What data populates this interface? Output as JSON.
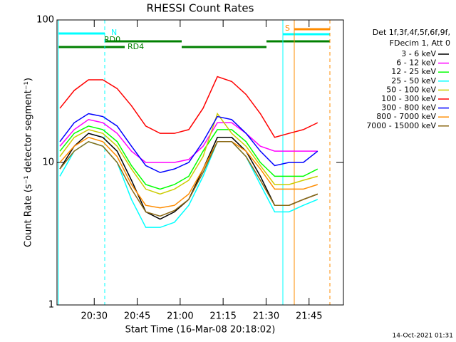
{
  "chart_data": {
    "type": "line",
    "title": "RHESSI Count Rates",
    "x_label": "Start Time (16-Mar-08 20:18:02)",
    "y_label": "Count Rate (s⁻¹ detector segment⁻¹)",
    "footer": "14-Oct-2021 01:31",
    "legend_header": [
      "Det 1f,3f,4f,5f,6f,9f,",
      "FDecim 1, Att 0"
    ],
    "legend": "right",
    "log_y": true,
    "annotations": [
      "N",
      "RD0",
      "RD4",
      "S"
    ],
    "x": [
      "20:18",
      "20:23",
      "20:28",
      "20:33",
      "20:38",
      "20:43",
      "20:48",
      "20:53",
      "20:58",
      "21:03",
      "21:08",
      "21:13",
      "21:18",
      "21:23",
      "21:28",
      "21:33",
      "21:38",
      "21:43",
      "21:48"
    ],
    "xlim": [
      "20:17",
      "21:57"
    ],
    "xticks": [
      "20:30",
      "20:45",
      "21:00",
      "21:15",
      "21:30",
      "21:45"
    ],
    "ylim": [
      1,
      100
    ],
    "yticks": [
      1,
      10,
      100
    ],
    "series": [
      {
        "name": "3 - 6 keV",
        "color": "#000000",
        "values": [
          9,
          13,
          16,
          15,
          12,
          7.5,
          4.5,
          4,
          4.5,
          5.5,
          9,
          15,
          15,
          12,
          8,
          5,
          5,
          5.5,
          6
        ]
      },
      {
        "name": "6 - 12 keV",
        "color": "#ff00ff",
        "values": [
          13,
          17,
          20,
          19,
          16,
          12,
          10,
          10,
          10,
          10.5,
          13,
          19,
          19,
          16,
          13,
          12,
          12,
          12,
          12
        ]
      },
      {
        "name": "12 - 25 keV",
        "color": "#00ff00",
        "values": [
          12,
          16,
          18,
          17,
          14,
          9.5,
          7,
          6.5,
          7,
          8,
          12,
          17,
          17,
          14,
          10,
          8,
          8,
          8,
          9
        ]
      },
      {
        "name": "25 - 50 keV",
        "color": "#00ffff",
        "values": [
          8,
          12,
          14,
          13,
          10,
          5.5,
          3.5,
          3.5,
          3.8,
          5,
          8,
          14,
          14,
          11,
          7,
          4.5,
          4.5,
          5,
          5.5
        ]
      },
      {
        "name": "50 - 100 keV",
        "color": "#cccc00",
        "values": [
          11,
          15,
          17,
          16,
          13,
          9,
          6.5,
          6,
          6.5,
          7.5,
          11,
          22,
          16,
          13,
          9.5,
          7,
          7,
          7.5,
          8
        ]
      },
      {
        "name": "100 - 300 keV",
        "color": "#ff0000",
        "values": [
          24,
          32,
          38,
          38,
          33,
          25,
          18,
          16,
          16,
          17,
          24,
          40,
          37,
          30,
          22,
          15,
          16,
          17,
          19
        ]
      },
      {
        "name": "300 - 800 keV",
        "color": "#0000ff",
        "values": [
          14,
          19,
          22,
          21,
          18,
          13,
          9.5,
          8.5,
          9,
          10,
          14,
          21,
          20,
          16,
          12,
          9.5,
          10,
          10,
          12
        ]
      },
      {
        "name": "800 - 7000 keV",
        "color": "#ff8c00",
        "values": [
          10,
          13,
          15,
          14,
          11,
          7,
          5,
          4.8,
          5,
          6,
          9,
          14,
          14,
          12,
          9,
          6.5,
          6.5,
          6.5,
          7
        ]
      },
      {
        "name": "7000 - 15000 keV",
        "color": "#8b6914",
        "values": [
          9,
          12,
          14,
          13,
          10,
          6.5,
          4.5,
          4.2,
          4.6,
          5.5,
          8.5,
          14,
          14,
          11,
          7.5,
          5,
          5,
          5.5,
          6
        ]
      }
    ]
  }
}
